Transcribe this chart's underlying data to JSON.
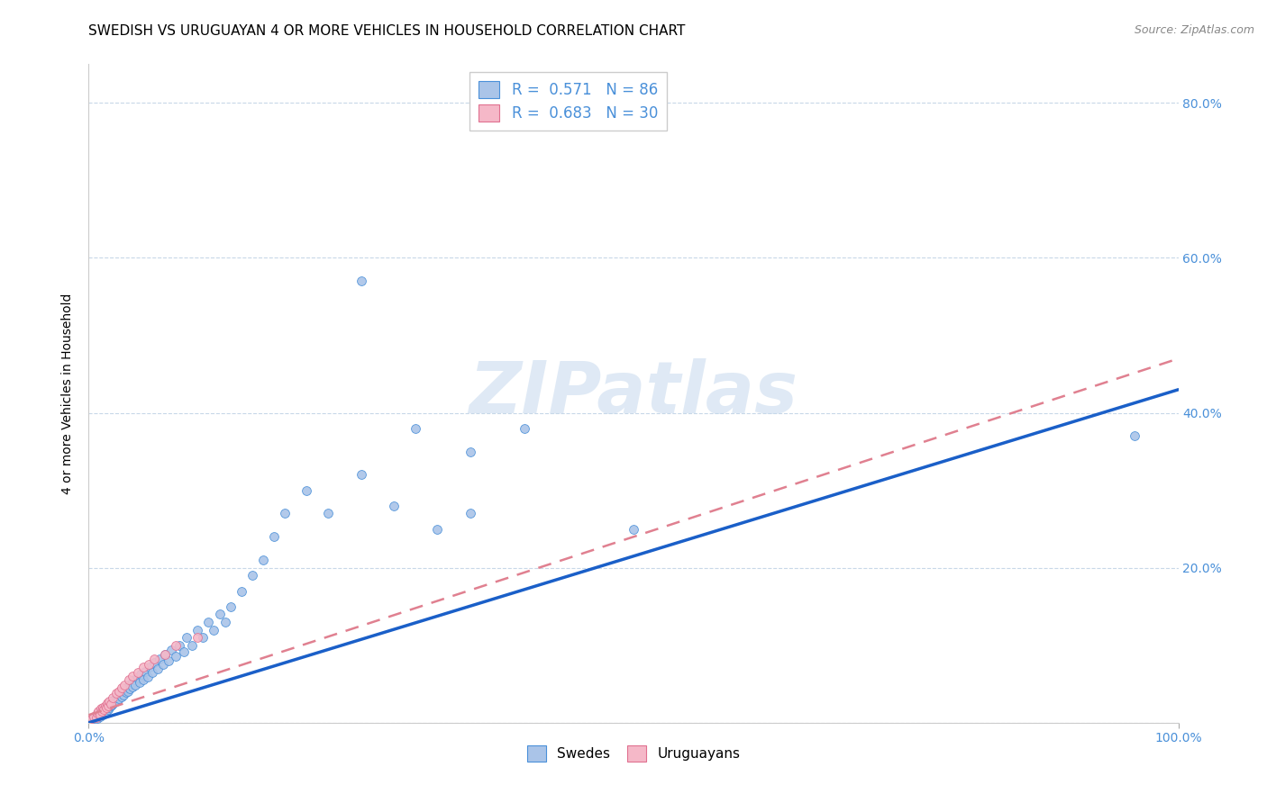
{
  "title": "SWEDISH VS URUGUAYAN 4 OR MORE VEHICLES IN HOUSEHOLD CORRELATION CHART",
  "source": "Source: ZipAtlas.com",
  "ylabel": "4 or more Vehicles in Household",
  "xlim": [
    0,
    1.0
  ],
  "ylim": [
    0,
    0.85
  ],
  "ytick_positions": [
    0.0,
    0.2,
    0.4,
    0.6,
    0.8
  ],
  "ytick_labels": [
    "",
    "20.0%",
    "40.0%",
    "60.0%",
    "80.0%"
  ],
  "xtick_positions": [
    0.0,
    1.0
  ],
  "xtick_labels": [
    "0.0%",
    "100.0%"
  ],
  "watermark": "ZIPatlas",
  "legend_label1": "R =  0.571   N = 86",
  "legend_label2": "R =  0.683   N = 30",
  "color_swedish_fill": "#aac4e8",
  "color_swedish_edge": "#4a90d9",
  "color_uruguayan_fill": "#f5b8c8",
  "color_uruguayan_edge": "#e07090",
  "color_line_swedish": "#1a5fc8",
  "color_line_uruguayan": "#e08090",
  "color_axis_labels": "#4a90d9",
  "color_grid": "#c8d8e8",
  "title_fontsize": 11,
  "axis_label_fontsize": 10,
  "tick_fontsize": 10,
  "legend_fontsize": 12,
  "source_fontsize": 9,
  "watermark_fontsize": 58,
  "swedish_x": [
    0.005,
    0.007,
    0.008,
    0.01,
    0.01,
    0.01,
    0.012,
    0.013,
    0.014,
    0.015,
    0.015,
    0.016,
    0.017,
    0.018,
    0.018,
    0.019,
    0.02,
    0.02,
    0.02,
    0.021,
    0.022,
    0.023,
    0.024,
    0.025,
    0.025,
    0.026,
    0.027,
    0.028,
    0.03,
    0.03,
    0.031,
    0.032,
    0.033,
    0.034,
    0.035,
    0.036,
    0.037,
    0.038,
    0.04,
    0.04,
    0.042,
    0.043,
    0.045,
    0.047,
    0.048,
    0.05,
    0.052,
    0.054,
    0.056,
    0.058,
    0.06,
    0.063,
    0.065,
    0.068,
    0.07,
    0.073,
    0.076,
    0.08,
    0.083,
    0.087,
    0.09,
    0.095,
    0.1,
    0.105,
    0.11,
    0.115,
    0.12,
    0.125,
    0.13,
    0.14,
    0.15,
    0.16,
    0.17,
    0.18,
    0.2,
    0.22,
    0.25,
    0.28,
    0.32,
    0.35,
    0.25,
    0.3,
    0.35,
    0.4,
    0.5,
    0.96
  ],
  "swedish_y": [
    0.005,
    0.008,
    0.006,
    0.01,
    0.015,
    0.008,
    0.012,
    0.01,
    0.015,
    0.012,
    0.018,
    0.015,
    0.02,
    0.017,
    0.022,
    0.019,
    0.025,
    0.022,
    0.028,
    0.023,
    0.027,
    0.025,
    0.03,
    0.028,
    0.032,
    0.029,
    0.035,
    0.031,
    0.038,
    0.034,
    0.04,
    0.036,
    0.043,
    0.039,
    0.045,
    0.041,
    0.048,
    0.044,
    0.052,
    0.046,
    0.055,
    0.049,
    0.058,
    0.052,
    0.062,
    0.056,
    0.066,
    0.059,
    0.072,
    0.065,
    0.078,
    0.07,
    0.082,
    0.075,
    0.088,
    0.08,
    0.094,
    0.086,
    0.1,
    0.092,
    0.11,
    0.1,
    0.12,
    0.11,
    0.13,
    0.12,
    0.14,
    0.13,
    0.15,
    0.17,
    0.19,
    0.21,
    0.24,
    0.27,
    0.3,
    0.27,
    0.32,
    0.28,
    0.25,
    0.35,
    0.57,
    0.38,
    0.27,
    0.38,
    0.25,
    0.37
  ],
  "uruguayan_x": [
    0.003,
    0.005,
    0.007,
    0.008,
    0.009,
    0.01,
    0.011,
    0.012,
    0.013,
    0.014,
    0.015,
    0.016,
    0.017,
    0.018,
    0.019,
    0.02,
    0.022,
    0.025,
    0.028,
    0.03,
    0.033,
    0.037,
    0.04,
    0.045,
    0.05,
    0.055,
    0.06,
    0.07,
    0.08,
    0.1
  ],
  "uruguayan_y": [
    0.005,
    0.008,
    0.007,
    0.012,
    0.015,
    0.01,
    0.018,
    0.015,
    0.02,
    0.017,
    0.022,
    0.019,
    0.025,
    0.022,
    0.028,
    0.024,
    0.032,
    0.038,
    0.04,
    0.045,
    0.048,
    0.055,
    0.06,
    0.065,
    0.072,
    0.075,
    0.082,
    0.088,
    0.1,
    0.11
  ],
  "trend_sw_x0": 0.0,
  "trend_sw_y0": 0.0,
  "trend_sw_x1": 1.0,
  "trend_sw_y1": 0.43,
  "trend_ur_x0": 0.0,
  "trend_ur_y0": 0.01,
  "trend_ur_x1": 1.0,
  "trend_ur_y1": 0.47
}
